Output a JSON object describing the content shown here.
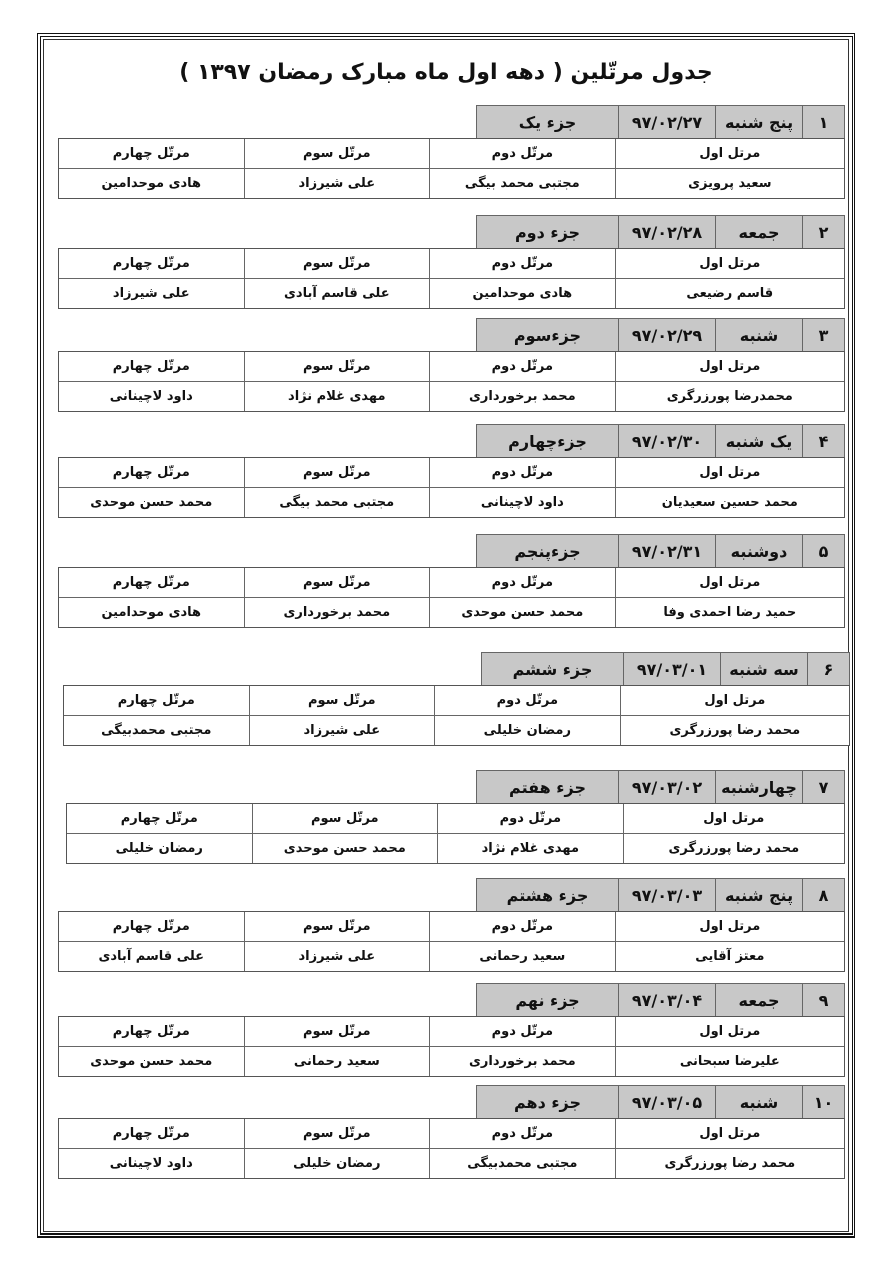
{
  "title": "جدول مرتّلین ( دهه اول ماه مبارک رمضان ۱۳۹۷ )",
  "column_headers": [
    "مرتل اول",
    "مرتّل دوم",
    "مرتّل سوم",
    "مرتّل چهارم"
  ],
  "days": [
    {
      "num": "۱",
      "day": "پنج شنبه",
      "date": "۹۷/۰۲/۲۷",
      "juz": "جزء یک",
      "reciters": [
        "سعید پرویزی",
        "مجتبی محمد بیگی",
        "علی شیرزاد",
        "هادی موحدامین"
      ]
    },
    {
      "num": "۲",
      "day": "جمعه",
      "date": "۹۷/۰۲/۲۸",
      "juz": "جزء دوم",
      "reciters": [
        "قاسم رضیعی",
        "هادی موحدامین",
        "علی قاسم آبادی",
        "علی شیرزاد"
      ]
    },
    {
      "num": "۳",
      "day": "شنبه",
      "date": "۹۷/۰۲/۲۹",
      "juz": "جزءسوم",
      "reciters": [
        "محمدرضا پورزرگری",
        "محمد برخورداری",
        "مهدی غلام نژاد",
        "داود لاچینانی"
      ]
    },
    {
      "num": "۴",
      "day": "یک شنبه",
      "date": "۹۷/۰۲/۳۰",
      "juz": "جزءچهارم",
      "reciters": [
        "محمد حسین سعیدیان",
        "داود لاچینانی",
        "مجتبی محمد بیگی",
        "محمد حسن موحدی"
      ]
    },
    {
      "num": "۵",
      "day": "دوشنبه",
      "date": "۹۷/۰۲/۳۱",
      "juz": "جزءپنجم",
      "reciters": [
        "حمید رضا احمدی وفا",
        "محمد حسن موحدی",
        "محمد برخورداری",
        "هادی موحدامین"
      ]
    },
    {
      "num": "۶",
      "day": "سه شنبه",
      "date": "۹۷/۰۳/۰۱",
      "juz": "جزء ششم",
      "reciters": [
        "محمد رضا پورزرگری",
        "رمضان خلیلی",
        "علی شیرزاد",
        "مجتبی محمدبیگی"
      ]
    },
    {
      "num": "۷",
      "day": "چهارشنبه",
      "date": "۹۷/۰۳/۰۲",
      "juz": "جزء هفتم",
      "reciters": [
        "محمد رضا پورزرگری",
        "مهدی غلام نژاد",
        "محمد حسن موحدی",
        "رمضان خلیلی"
      ]
    },
    {
      "num": "۸",
      "day": "پنج شنبه",
      "date": "۹۷/۰۳/۰۳",
      "juz": "جزء هشتم",
      "reciters": [
        "معتز آقایی",
        "سعید رحمانی",
        "علی شیرزاد",
        "علی قاسم آبادی"
      ]
    },
    {
      "num": "۹",
      "day": "جمعه",
      "date": "۹۷/۰۳/۰۴",
      "juz": "جزء نهم",
      "reciters": [
        "علیرضا سبحانی",
        "محمد برخورداری",
        "سعید رحمانی",
        "محمد حسن موحدی"
      ]
    },
    {
      "num": "۱۰",
      "day": "شنبه",
      "date": "۹۷/۰۳/۰۵",
      "juz": "جزء دهم",
      "reciters": [
        "محمد رضا پورزرگری",
        "مجتبی محمدبیگی",
        "رمضان خلیلی",
        "داود لاچینانی"
      ]
    }
  ]
}
